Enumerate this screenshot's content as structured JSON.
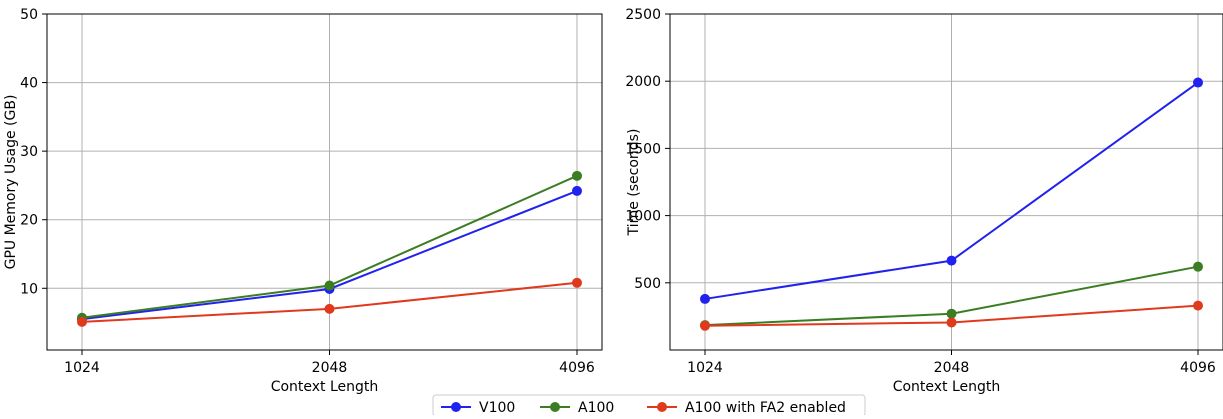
{
  "chart_data": [
    {
      "type": "line",
      "title": "",
      "xlabel": "Context Length",
      "ylabel": "GPU Memory Usage (GB)",
      "categories": [
        "1024",
        "2048",
        "4096"
      ],
      "ylim": [
        1,
        50
      ],
      "yticks": [
        10,
        20,
        30,
        40,
        50
      ],
      "grid": true,
      "series": [
        {
          "name": "V100",
          "color": "#2222ee",
          "values": [
            5.5,
            9.9,
            24.2
          ]
        },
        {
          "name": "A100",
          "color": "#3b7d23",
          "values": [
            5.7,
            10.4,
            26.4
          ]
        },
        {
          "name": "A100 with FA2 enabled",
          "color": "#e03a1e",
          "values": [
            5.1,
            7.0,
            10.8
          ]
        }
      ]
    },
    {
      "type": "line",
      "title": "",
      "xlabel": "Context Length",
      "ylabel": "Time (seconds)",
      "categories": [
        "1024",
        "2048",
        "4096"
      ],
      "ylim": [
        0,
        2500
      ],
      "yticks": [
        500,
        1000,
        1500,
        2000,
        2500
      ],
      "grid": true,
      "series": [
        {
          "name": "V100",
          "color": "#2222ee",
          "values": [
            380,
            665,
            1990
          ]
        },
        {
          "name": "A100",
          "color": "#3b7d23",
          "values": [
            185,
            270,
            620
          ]
        },
        {
          "name": "A100 with FA2 enabled",
          "color": "#e03a1e",
          "values": [
            180,
            205,
            330
          ]
        }
      ]
    }
  ],
  "legend": {
    "placement": "bottom-center",
    "items": [
      {
        "label": "V100",
        "color": "#2222ee"
      },
      {
        "label": "A100",
        "color": "#3b7d23"
      },
      {
        "label": "A100 with FA2 enabled",
        "color": "#e03a1e"
      }
    ]
  }
}
